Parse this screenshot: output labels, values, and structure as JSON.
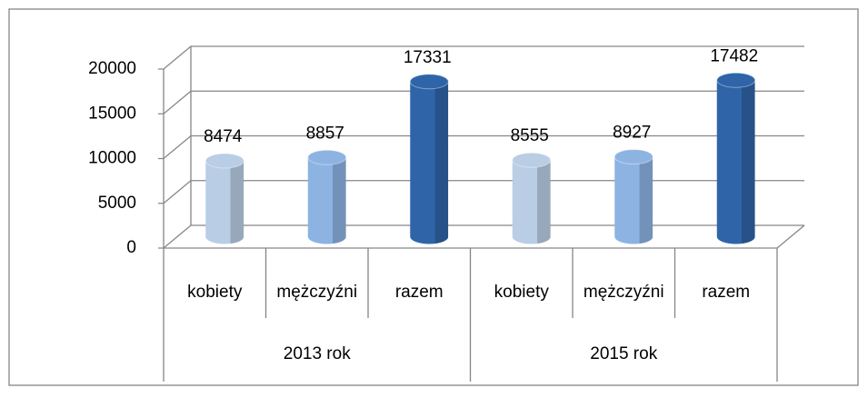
{
  "chart_data": {
    "type": "bar",
    "categories": [
      "kobiety",
      "mężczyźni",
      "razem",
      "kobiety",
      "mężczyźni",
      "razem"
    ],
    "groups": [
      "2013 rok",
      "2015 rok"
    ],
    "values": [
      8474,
      8857,
      17331,
      8555,
      8927,
      17482
    ],
    "colors": [
      "#b9cde5",
      "#8db3e2",
      "#2f65a8",
      "#b9cde5",
      "#8db3e2",
      "#2f65a8"
    ],
    "ylim": [
      0,
      20000
    ],
    "yticks": [
      0,
      5000,
      10000,
      15000,
      20000
    ],
    "grid": true
  }
}
